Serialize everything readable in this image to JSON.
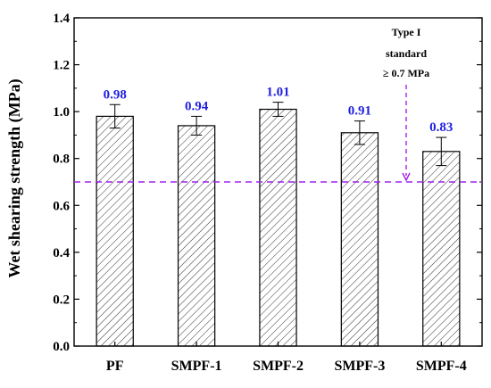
{
  "chart_data": {
    "type": "bar",
    "categories": [
      "PF",
      "SMPF-1",
      "SMPF-2",
      "SMPF-3",
      "SMPF-4"
    ],
    "values": [
      0.98,
      0.94,
      1.01,
      0.91,
      0.83
    ],
    "errors": [
      0.05,
      0.04,
      0.03,
      0.05,
      0.06
    ],
    "data_labels": [
      "0.98",
      "0.94",
      "1.01",
      "0.91",
      "0.83"
    ],
    "ylabel": "Wet shearing strength (MPa)",
    "xlabel": "",
    "ylim": [
      0,
      1.4
    ],
    "yticks": [
      "0.0",
      "0.2",
      "0.4",
      "0.6",
      "0.8",
      "1.0",
      "1.2",
      "1.4"
    ],
    "bar_fill": "hatched",
    "reference_line": {
      "value": 0.7,
      "style": "dashed",
      "annotation": [
        "Type I",
        "standard",
        "≥ 0.7 MPa"
      ]
    },
    "grid": false,
    "colors": {
      "data_label": "#1f1fe0",
      "reference_line": "#a020f0",
      "bar_edge": "#000000"
    }
  }
}
